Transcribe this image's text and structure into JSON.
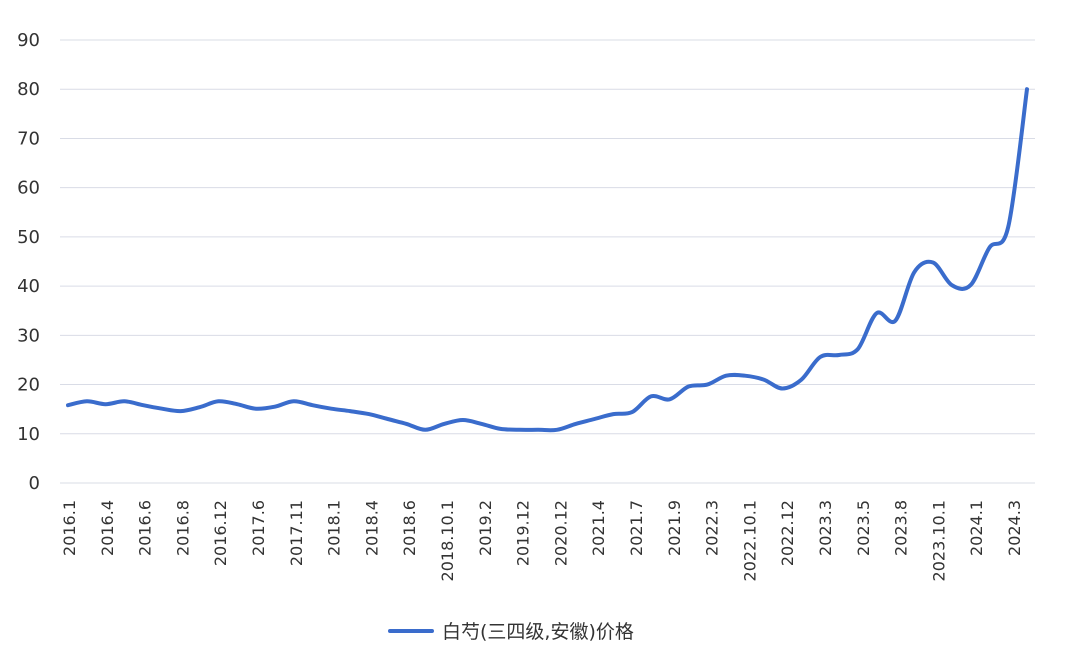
{
  "chart_data": {
    "type": "line",
    "ylim": [
      0,
      90
    ],
    "yticks": [
      "0",
      "10",
      "20",
      "30",
      "40",
      "50",
      "60",
      "70",
      "80",
      "90"
    ],
    "grid": true,
    "legend": {
      "placement": "bottom-center"
    },
    "xtick_labels": [
      "2016.1",
      "2016.4",
      "2016.6",
      "2016.8",
      "2016.12",
      "2017.6",
      "2017.11",
      "2018.1",
      "2018.4",
      "2018.6",
      "2018.10.1",
      "2019.2",
      "2019.12",
      "2020.12",
      "2021.4",
      "2021.7",
      "2021.9",
      "2022.3",
      "2022.10.1",
      "2022.12",
      "2023.3",
      "2023.5",
      "2023.8",
      "2023.10.1",
      "2024.1",
      "2024.3"
    ],
    "series": [
      {
        "name": "白芍(三四级,安徽)价格",
        "color": "#3a6ccc",
        "values": [
          15.8,
          16.6,
          16.0,
          16.6,
          15.8,
          15.1,
          14.6,
          15.4,
          16.6,
          16.0,
          15.1,
          15.5,
          16.6,
          15.8,
          15.1,
          14.6,
          14.0,
          13.0,
          12.0,
          10.8,
          12.0,
          12.8,
          12.0,
          11.0,
          10.8,
          10.8,
          10.8,
          12.0,
          13.0,
          14.0,
          14.4,
          17.6,
          17.0,
          19.6,
          20.0,
          21.8,
          21.8,
          21.0,
          19.2,
          21.0,
          25.6,
          26.0,
          27.2,
          34.5,
          33.0,
          42.8,
          44.8,
          40.2,
          40.2,
          47.8,
          52.0,
          80.0
        ]
      }
    ]
  },
  "colors": {
    "grid": "#d9dce6",
    "line": "#3a6ccc",
    "text": "#333333"
  }
}
